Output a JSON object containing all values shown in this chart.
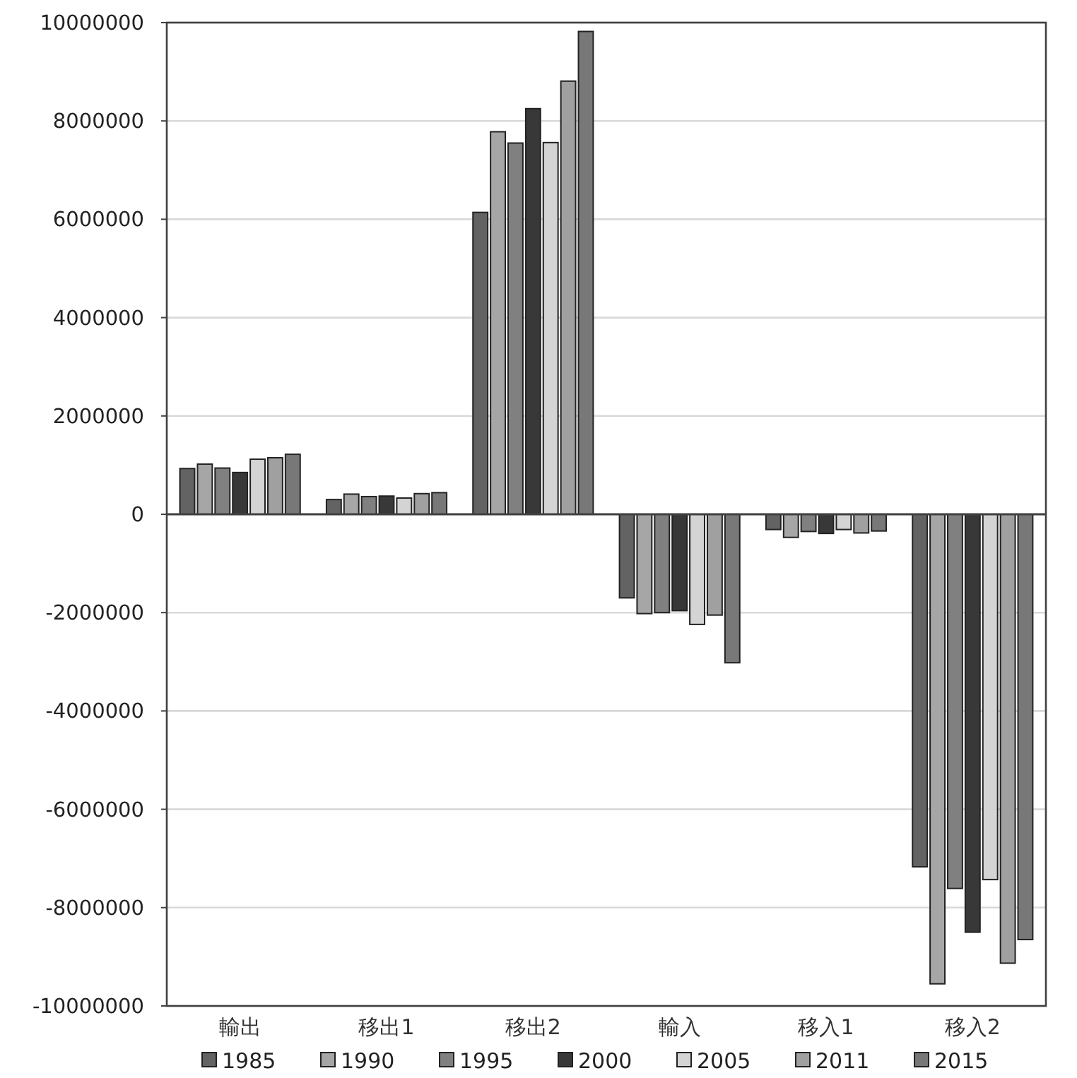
{
  "chart_data": {
    "type": "bar",
    "categories": [
      "輸出",
      "移出1",
      "移出2",
      "輸入",
      "移入1",
      "移入2"
    ],
    "ylim": [
      -10000000,
      10000000
    ],
    "yticks": [
      -10000000,
      -8000000,
      -6000000,
      -4000000,
      -2000000,
      0,
      2000000,
      4000000,
      6000000,
      8000000,
      10000000
    ],
    "grid": "y",
    "legend": "bottom",
    "series": [
      {
        "name": "1985",
        "color": "#636363",
        "values": [
          930000,
          300000,
          6140000,
          -1700000,
          -310000,
          -7170000
        ]
      },
      {
        "name": "1990",
        "color": "#a6a6a6",
        "values": [
          1020000,
          410000,
          7780000,
          -2020000,
          -470000,
          -9550000
        ]
      },
      {
        "name": "1995",
        "color": "#808080",
        "values": [
          940000,
          360000,
          7550000,
          -2000000,
          -350000,
          -7610000
        ]
      },
      {
        "name": "2000",
        "color": "#383838",
        "values": [
          850000,
          370000,
          8250000,
          -1960000,
          -390000,
          -8500000
        ]
      },
      {
        "name": "2005",
        "color": "#d4d4d4",
        "values": [
          1120000,
          330000,
          7560000,
          -2240000,
          -310000,
          -7430000
        ]
      },
      {
        "name": "2011",
        "color": "#a0a0a0",
        "values": [
          1150000,
          420000,
          8810000,
          -2050000,
          -380000,
          -9130000
        ]
      },
      {
        "name": "2015",
        "color": "#787878",
        "values": [
          1220000,
          440000,
          9820000,
          -3020000,
          -340000,
          -8650000
        ]
      }
    ]
  }
}
